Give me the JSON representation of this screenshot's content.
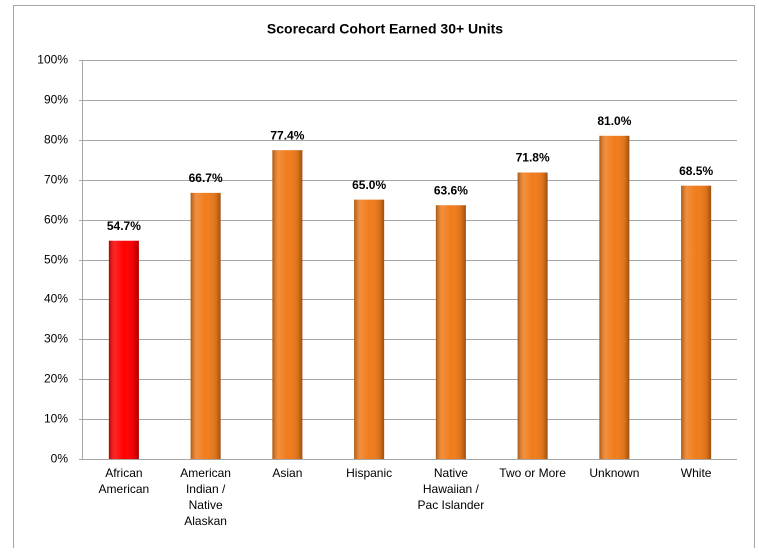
{
  "chart_data": {
    "type": "bar",
    "title": "Scorecard Cohort Earned 30+ Units",
    "categories": [
      "African American",
      "American Indian / Native Alaskan",
      "Asian",
      "Hispanic",
      "Native Hawaiian / Pac Islander",
      "Two or More",
      "Unknown",
      "White"
    ],
    "values": [
      54.7,
      66.7,
      77.4,
      65.0,
      63.6,
      71.8,
      81.0,
      68.5
    ],
    "value_labels": [
      "54.7%",
      "66.7%",
      "77.4%",
      "65.0%",
      "63.6%",
      "71.8%",
      "81.0%",
      "68.5%"
    ],
    "colors": [
      "#ff0000",
      "#f07c1b",
      "#f07c1b",
      "#f07c1b",
      "#f07c1b",
      "#f07c1b",
      "#f07c1b",
      "#f07c1b"
    ],
    "ylim": [
      0,
      100
    ],
    "yticks": [
      {
        "value": 0,
        "label": "0%"
      },
      {
        "value": 10,
        "label": "10%"
      },
      {
        "value": 20,
        "label": "20%"
      },
      {
        "value": 30,
        "label": "30%"
      },
      {
        "value": 40,
        "label": "40%"
      },
      {
        "value": 50,
        "label": "50%"
      },
      {
        "value": 60,
        "label": "60%"
      },
      {
        "value": 70,
        "label": "70%"
      },
      {
        "value": 80,
        "label": "80%"
      },
      {
        "value": 90,
        "label": "90%"
      },
      {
        "value": 100,
        "label": "100%"
      }
    ],
    "grid": true
  }
}
